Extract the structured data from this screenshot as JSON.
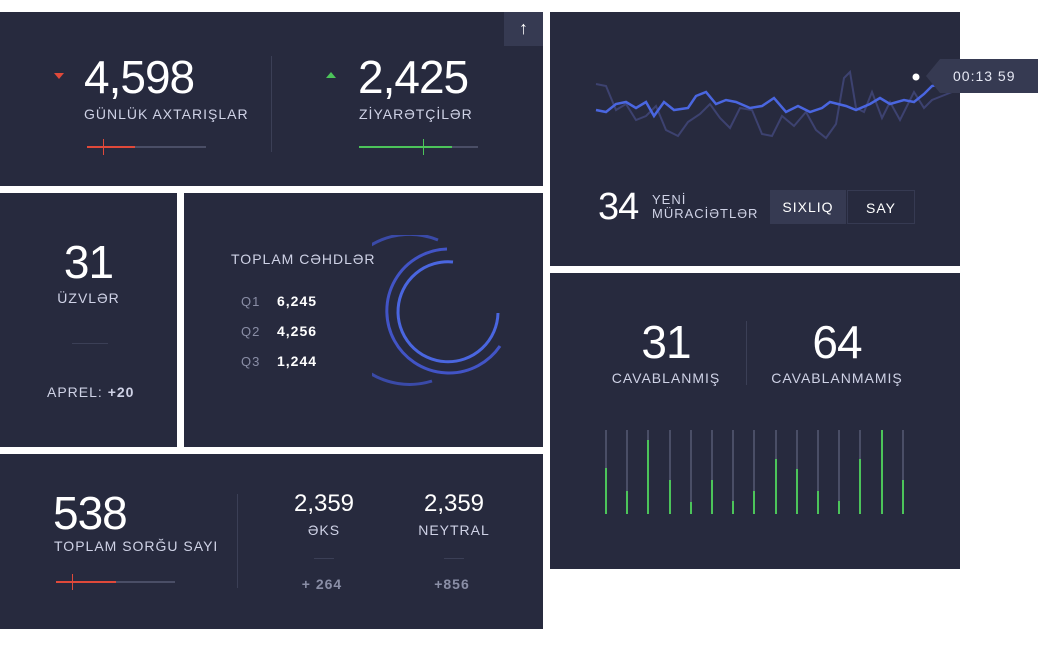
{
  "colors": {
    "panel": "#272a3e",
    "red": "#e0493a",
    "green": "#4cc45a",
    "blue": "#4a66e0",
    "track": "#4a4e66"
  },
  "panel1": {
    "stat1": {
      "value": "4,598",
      "label": "GÜNLÜK AXTARIŞLAR",
      "trend": "down",
      "progress": 0.4
    },
    "stat2": {
      "value": "2,425",
      "label": "ZİYARƏTÇİLƏR",
      "trend": "up",
      "progress": 0.78
    },
    "scroll_icon": "arrow-up-icon",
    "scroll_glyph": "↑"
  },
  "panel2": {
    "time": "00:13 59",
    "count": "34",
    "label_line1": "YENİ",
    "label_line2": "MÜRACİƏTLƏR",
    "tabs": [
      "SIXLIQ",
      "SAY"
    ]
  },
  "panel3": {
    "value": "31",
    "label": "ÜZVLƏR",
    "footer_label": "APREL:",
    "footer_value": "+20"
  },
  "panel4": {
    "title": "TOPLAM CƏHDLƏR",
    "rows": [
      {
        "q": "Q1",
        "value": "6,245"
      },
      {
        "q": "Q2",
        "value": "4,256"
      },
      {
        "q": "Q3",
        "value": "1,244"
      }
    ]
  },
  "panel5": {
    "stat1": {
      "value": "31",
      "label": "CAVABLANMIŞ"
    },
    "stat2": {
      "value": "64",
      "label": "CAVABLANMAMIŞ"
    },
    "bars": [
      0.55,
      0.27,
      0.88,
      0.4,
      0.14,
      0.4,
      0.16,
      0.27,
      0.65,
      0.53,
      0.27,
      0.16,
      0.65,
      1.0,
      0.4
    ]
  },
  "panel6": {
    "main": {
      "value": "538",
      "label": "TOPLAM SORĞU SAYI",
      "progress": 0.5
    },
    "s1": {
      "value": "2,359",
      "label": "ƏKS",
      "delta": "+ 264"
    },
    "s2": {
      "value": "2,359",
      "label": "NEYTRAL",
      "delta": "+856"
    }
  }
}
